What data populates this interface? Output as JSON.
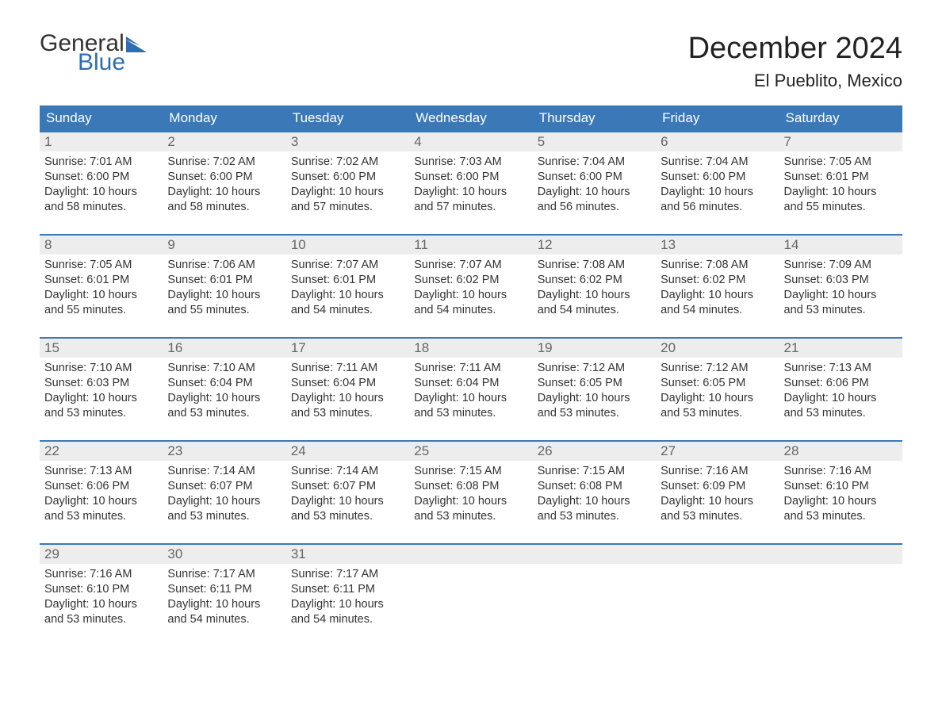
{
  "logo": {
    "general": "General",
    "blue": "Blue",
    "flag_color": "#2f6eb0"
  },
  "title": "December 2024",
  "location": "El Pueblito, Mexico",
  "colors": {
    "header_bg": "#3a78b8",
    "header_text": "#ffffff",
    "daynum_bg": "#ededed",
    "daynum_text": "#666666",
    "body_text": "#333333",
    "week_border": "#3a78b8",
    "page_bg": "#ffffff"
  },
  "typography": {
    "title_fontsize": 38,
    "location_fontsize": 22,
    "weekday_fontsize": 17,
    "daynum_fontsize": 17,
    "body_fontsize": 14.5
  },
  "layout": {
    "columns": 7,
    "rows": 5
  },
  "weekdays": [
    "Sunday",
    "Monday",
    "Tuesday",
    "Wednesday",
    "Thursday",
    "Friday",
    "Saturday"
  ],
  "days": [
    {
      "n": 1,
      "sunrise": "7:01 AM",
      "sunset": "6:00 PM",
      "dl1": "Daylight: 10 hours",
      "dl2": "and 58 minutes."
    },
    {
      "n": 2,
      "sunrise": "7:02 AM",
      "sunset": "6:00 PM",
      "dl1": "Daylight: 10 hours",
      "dl2": "and 58 minutes."
    },
    {
      "n": 3,
      "sunrise": "7:02 AM",
      "sunset": "6:00 PM",
      "dl1": "Daylight: 10 hours",
      "dl2": "and 57 minutes."
    },
    {
      "n": 4,
      "sunrise": "7:03 AM",
      "sunset": "6:00 PM",
      "dl1": "Daylight: 10 hours",
      "dl2": "and 57 minutes."
    },
    {
      "n": 5,
      "sunrise": "7:04 AM",
      "sunset": "6:00 PM",
      "dl1": "Daylight: 10 hours",
      "dl2": "and 56 minutes."
    },
    {
      "n": 6,
      "sunrise": "7:04 AM",
      "sunset": "6:00 PM",
      "dl1": "Daylight: 10 hours",
      "dl2": "and 56 minutes."
    },
    {
      "n": 7,
      "sunrise": "7:05 AM",
      "sunset": "6:01 PM",
      "dl1": "Daylight: 10 hours",
      "dl2": "and 55 minutes."
    },
    {
      "n": 8,
      "sunrise": "7:05 AM",
      "sunset": "6:01 PM",
      "dl1": "Daylight: 10 hours",
      "dl2": "and 55 minutes."
    },
    {
      "n": 9,
      "sunrise": "7:06 AM",
      "sunset": "6:01 PM",
      "dl1": "Daylight: 10 hours",
      "dl2": "and 55 minutes."
    },
    {
      "n": 10,
      "sunrise": "7:07 AM",
      "sunset": "6:01 PM",
      "dl1": "Daylight: 10 hours",
      "dl2": "and 54 minutes."
    },
    {
      "n": 11,
      "sunrise": "7:07 AM",
      "sunset": "6:02 PM",
      "dl1": "Daylight: 10 hours",
      "dl2": "and 54 minutes."
    },
    {
      "n": 12,
      "sunrise": "7:08 AM",
      "sunset": "6:02 PM",
      "dl1": "Daylight: 10 hours",
      "dl2": "and 54 minutes."
    },
    {
      "n": 13,
      "sunrise": "7:08 AM",
      "sunset": "6:02 PM",
      "dl1": "Daylight: 10 hours",
      "dl2": "and 54 minutes."
    },
    {
      "n": 14,
      "sunrise": "7:09 AM",
      "sunset": "6:03 PM",
      "dl1": "Daylight: 10 hours",
      "dl2": "and 53 minutes."
    },
    {
      "n": 15,
      "sunrise": "7:10 AM",
      "sunset": "6:03 PM",
      "dl1": "Daylight: 10 hours",
      "dl2": "and 53 minutes."
    },
    {
      "n": 16,
      "sunrise": "7:10 AM",
      "sunset": "6:04 PM",
      "dl1": "Daylight: 10 hours",
      "dl2": "and 53 minutes."
    },
    {
      "n": 17,
      "sunrise": "7:11 AM",
      "sunset": "6:04 PM",
      "dl1": "Daylight: 10 hours",
      "dl2": "and 53 minutes."
    },
    {
      "n": 18,
      "sunrise": "7:11 AM",
      "sunset": "6:04 PM",
      "dl1": "Daylight: 10 hours",
      "dl2": "and 53 minutes."
    },
    {
      "n": 19,
      "sunrise": "7:12 AM",
      "sunset": "6:05 PM",
      "dl1": "Daylight: 10 hours",
      "dl2": "and 53 minutes."
    },
    {
      "n": 20,
      "sunrise": "7:12 AM",
      "sunset": "6:05 PM",
      "dl1": "Daylight: 10 hours",
      "dl2": "and 53 minutes."
    },
    {
      "n": 21,
      "sunrise": "7:13 AM",
      "sunset": "6:06 PM",
      "dl1": "Daylight: 10 hours",
      "dl2": "and 53 minutes."
    },
    {
      "n": 22,
      "sunrise": "7:13 AM",
      "sunset": "6:06 PM",
      "dl1": "Daylight: 10 hours",
      "dl2": "and 53 minutes."
    },
    {
      "n": 23,
      "sunrise": "7:14 AM",
      "sunset": "6:07 PM",
      "dl1": "Daylight: 10 hours",
      "dl2": "and 53 minutes."
    },
    {
      "n": 24,
      "sunrise": "7:14 AM",
      "sunset": "6:07 PM",
      "dl1": "Daylight: 10 hours",
      "dl2": "and 53 minutes."
    },
    {
      "n": 25,
      "sunrise": "7:15 AM",
      "sunset": "6:08 PM",
      "dl1": "Daylight: 10 hours",
      "dl2": "and 53 minutes."
    },
    {
      "n": 26,
      "sunrise": "7:15 AM",
      "sunset": "6:08 PM",
      "dl1": "Daylight: 10 hours",
      "dl2": "and 53 minutes."
    },
    {
      "n": 27,
      "sunrise": "7:16 AM",
      "sunset": "6:09 PM",
      "dl1": "Daylight: 10 hours",
      "dl2": "and 53 minutes."
    },
    {
      "n": 28,
      "sunrise": "7:16 AM",
      "sunset": "6:10 PM",
      "dl1": "Daylight: 10 hours",
      "dl2": "and 53 minutes."
    },
    {
      "n": 29,
      "sunrise": "7:16 AM",
      "sunset": "6:10 PM",
      "dl1": "Daylight: 10 hours",
      "dl2": "and 53 minutes."
    },
    {
      "n": 30,
      "sunrise": "7:17 AM",
      "sunset": "6:11 PM",
      "dl1": "Daylight: 10 hours",
      "dl2": "and 54 minutes."
    },
    {
      "n": 31,
      "sunrise": "7:17 AM",
      "sunset": "6:11 PM",
      "dl1": "Daylight: 10 hours",
      "dl2": "and 54 minutes."
    }
  ],
  "labels": {
    "sunrise_prefix": "Sunrise: ",
    "sunset_prefix": "Sunset: "
  }
}
